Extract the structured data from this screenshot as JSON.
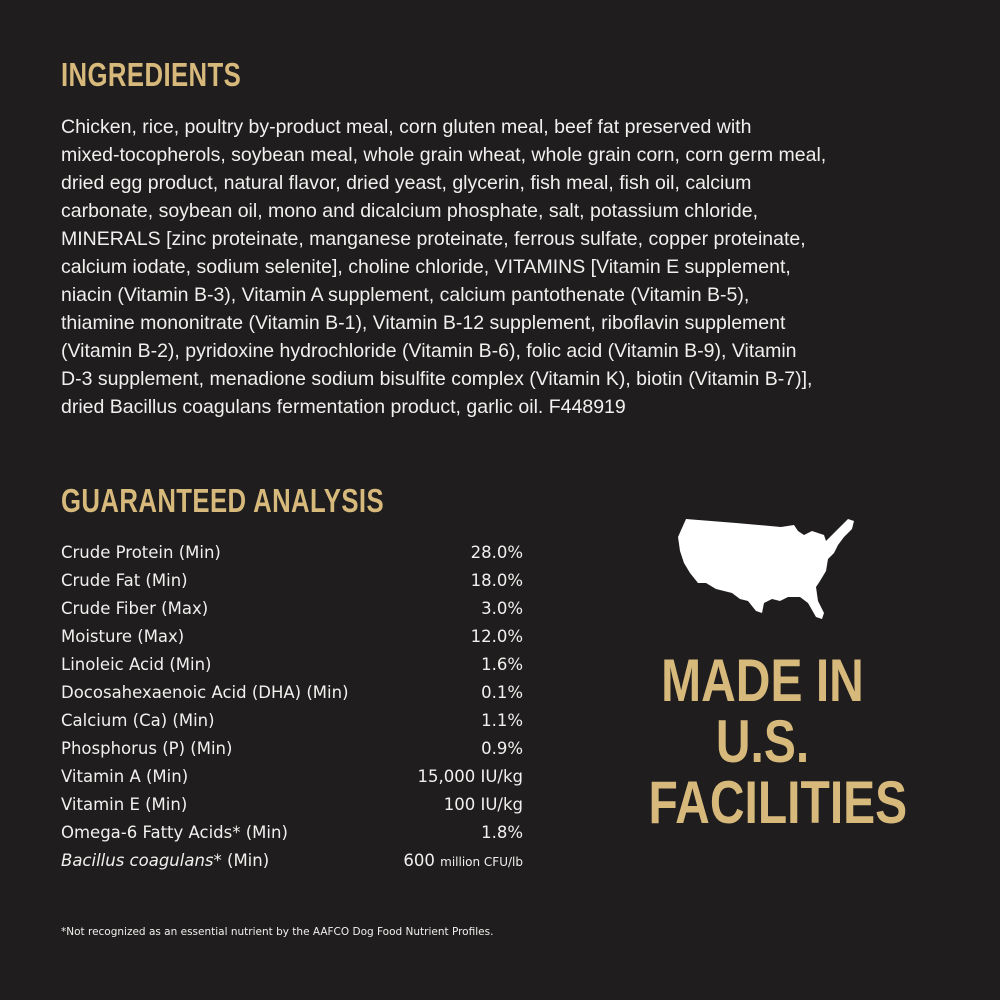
{
  "ingredients": {
    "title": "INGREDIENTS",
    "lines": [
      "Chicken, rice, poultry by-product meal, corn gluten meal, beef fat preserved with",
      "mixed-tocopherols, soybean meal, whole grain wheat, whole grain corn, corn germ meal,",
      "dried egg product, natural flavor, dried yeast, glycerin, fish meal, fish oil, calcium",
      "carbonate, soybean oil, mono and dicalcium phosphate, salt, potassium chloride,",
      "MINERALS [zinc proteinate, manganese proteinate, ferrous sulfate, copper proteinate,",
      "calcium iodate, sodium selenite], choline chloride, VITAMINS [Vitamin E supplement,",
      "niacin (Vitamin B-3), Vitamin A supplement, calcium pantothenate (Vitamin B-5),",
      "thiamine mononitrate (Vitamin B-1), Vitamin B-12 supplement, riboflavin supplement",
      "(Vitamin B-2), pyridoxine hydrochloride (Vitamin B-6), folic acid (Vitamin B-9), Vitamin",
      "D-3 supplement, menadione sodium bisulfite complex (Vitamin K), biotin (Vitamin B-7)],",
      "dried Bacillus coagulans fermentation product, garlic oil. F448919"
    ]
  },
  "analysis": {
    "title": "GUARANTEED ANALYSIS",
    "rows": [
      {
        "label": "Crude Protein (Min)",
        "value": "28.0%"
      },
      {
        "label": "Crude Fat (Min)",
        "value": "18.0%"
      },
      {
        "label": "Crude Fiber (Max)",
        "value": "3.0%"
      },
      {
        "label": "Moisture (Max)",
        "value": "12.0%"
      },
      {
        "label": "Linoleic Acid (Min)",
        "value": "1.6%"
      },
      {
        "label": "Docosahexaenoic Acid (DHA) (Min)",
        "value": "0.1%"
      },
      {
        "label": "Calcium (Ca) (Min)",
        "value": "1.1%"
      },
      {
        "label": "Phosphorus (P) (Min)",
        "value": "0.9%"
      },
      {
        "label": "Vitamin A (Min)",
        "value": "15,000 IU/kg"
      },
      {
        "label": "Vitamin E (Min)",
        "value": "100 IU/kg"
      },
      {
        "label": "Omega-6 Fatty Acids* (Min)",
        "value": "1.8%"
      }
    ],
    "last_row": {
      "label_italic": "Bacillus coagulans",
      "label_rest": "* (Min)",
      "value": "600",
      "unit": "million CFU/lb"
    }
  },
  "footnote": "*Not recognized as an essential nutrient by the AAFCO Dog Food Nutrient Profiles.",
  "badge": {
    "icon": "usa-map-icon",
    "lines": [
      "MADE IN",
      "U.S.",
      "FACILITIES"
    ]
  },
  "colors": {
    "background": "#1f1d1d",
    "accent": "#d7b97c",
    "text": "#f2f0ee"
  }
}
